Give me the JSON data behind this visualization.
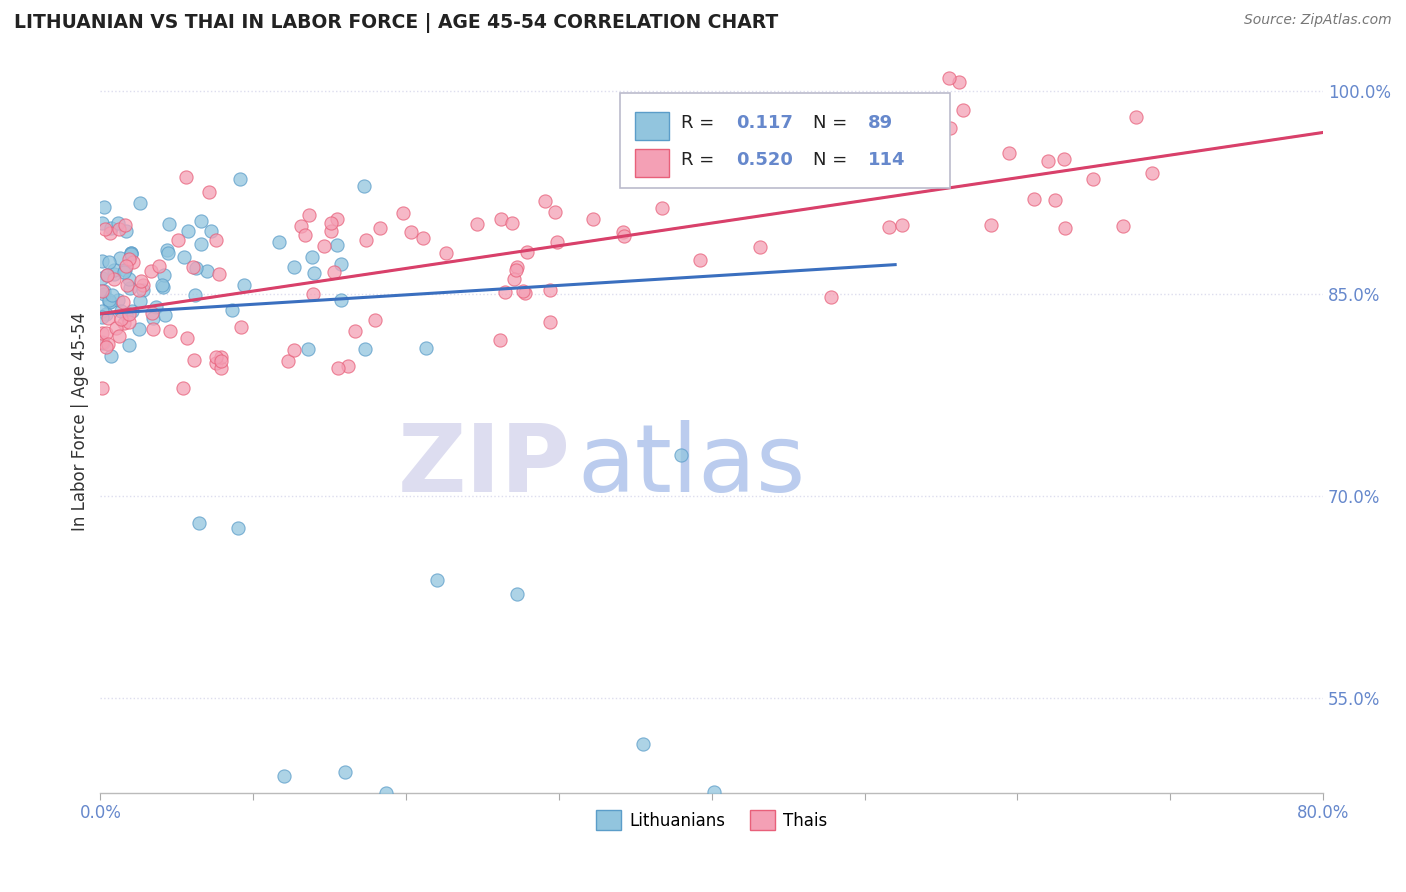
{
  "title": "LITHUANIAN VS THAI IN LABOR FORCE | AGE 45-54 CORRELATION CHART",
  "source": "Source: ZipAtlas.com",
  "ylabel": "In Labor Force | Age 45-54",
  "xlim": [
    0.0,
    80.0
  ],
  "ylim": [
    48.0,
    103.0
  ],
  "yticks": [
    55.0,
    70.0,
    85.0,
    100.0
  ],
  "yticklabels": [
    "55.0%",
    "70.0%",
    "85.0%",
    "100.0%"
  ],
  "R_lith": 0.117,
  "N_lith": 89,
  "R_thai": 0.52,
  "N_thai": 114,
  "color_lith": "#92C5DE",
  "color_thai": "#F4A0B5",
  "edge_lith": "#5B9DC9",
  "edge_thai": "#E8607A",
  "line_lith_color": "#3A6FBF",
  "line_thai_color": "#D9406A",
  "line_dashed_color": "#BBBBCC",
  "grid_color": "#DDDDEE",
  "tick_color": "#6688CC",
  "title_color": "#222222",
  "source_color": "#777777",
  "ylabel_color": "#333333",
  "watermark_zip_color": "#DDDDF0",
  "watermark_atlas_color": "#BBCCEE"
}
